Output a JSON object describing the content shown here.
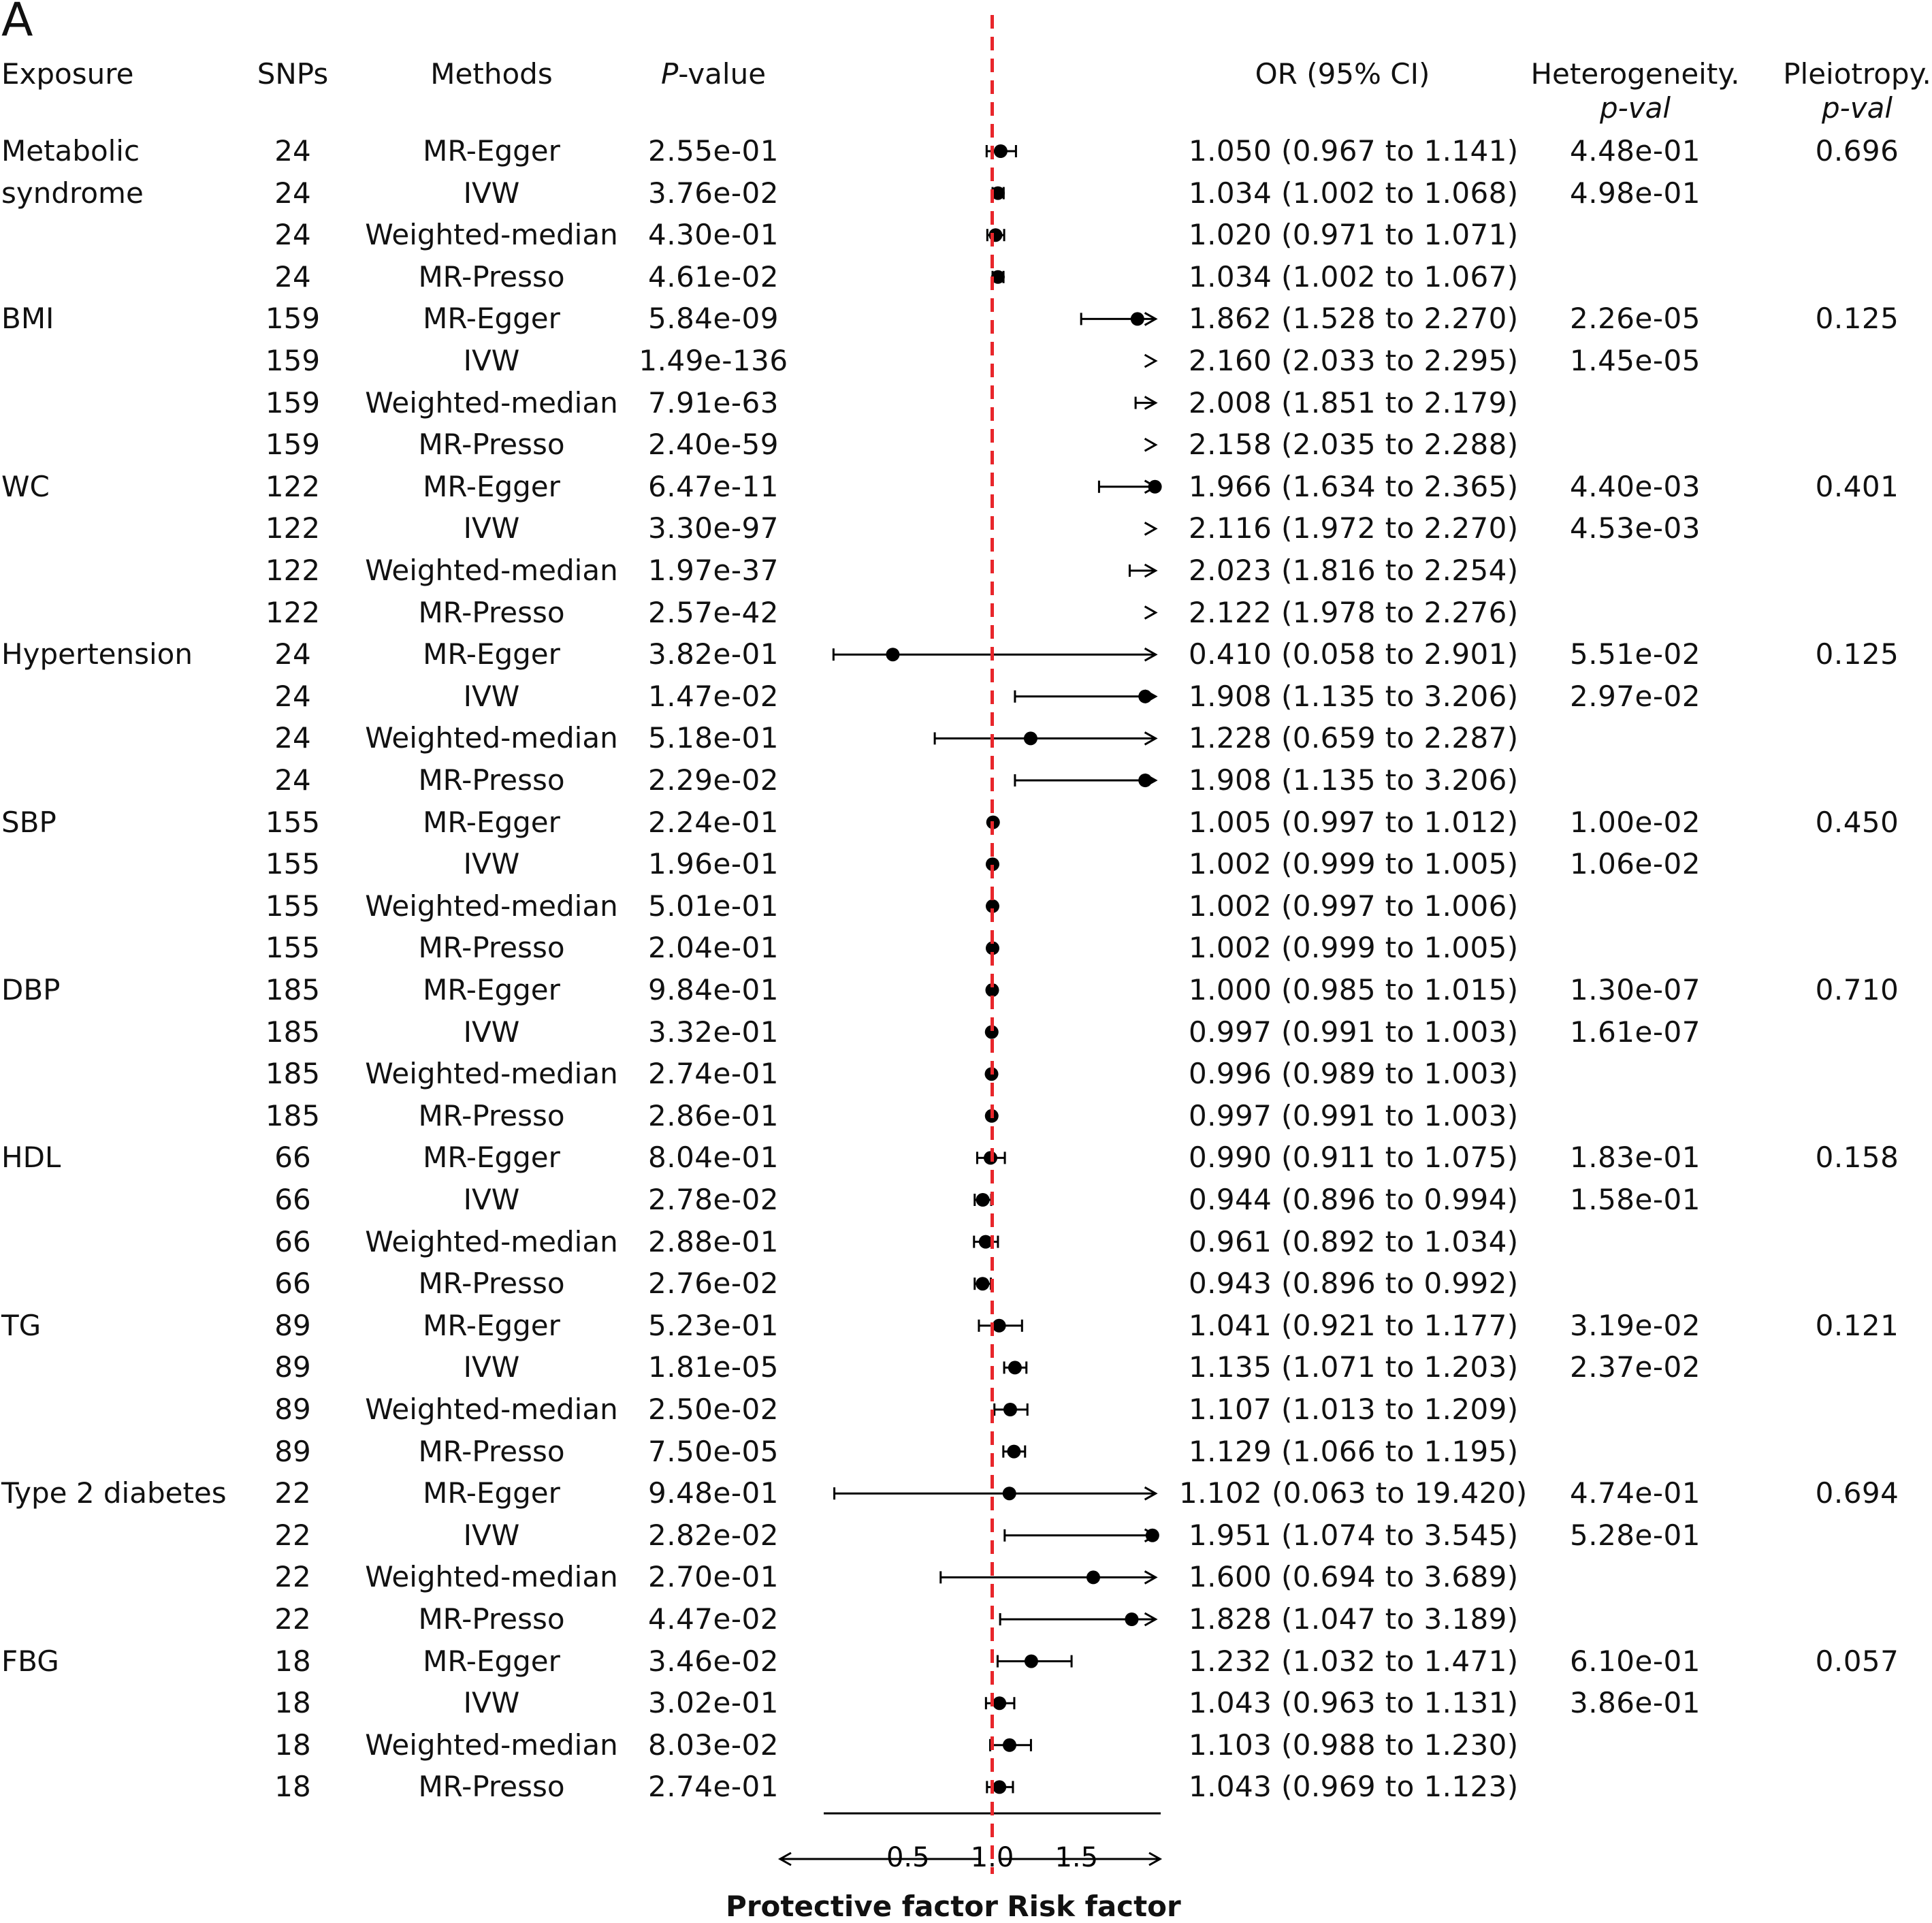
{
  "panel_label": "A",
  "headers": {
    "exposure": "Exposure",
    "snps": "SNPs",
    "methods": "Methods",
    "pvalue_italic": "P",
    "pvalue_rest": "-value",
    "or": "OR (95% CI)",
    "heterogeneity_line1": "Heterogeneity.",
    "heterogeneity_line2": "p-val",
    "pleiotropy_line1": "Pleiotropy.",
    "pleiotropy_line2": "p-val"
  },
  "bottom_labels": {
    "protective": "Protective factor",
    "risk": "Risk factor"
  },
  "colors": {
    "reference_line": "#e8262b",
    "marks": "#000000"
  },
  "chart_data": {
    "type": "forest",
    "reference_value": 1.0,
    "xlim": [
      0.0,
      2.0
    ],
    "xticks": [
      "0.5",
      "1.0",
      "1.5"
    ],
    "xtick_values": [
      0.5,
      1.0,
      1.5
    ],
    "rows": [
      {
        "exposure_lines": [
          "Metabolic",
          "syndrome"
        ],
        "snps": "24",
        "method": "MR-Egger",
        "p": "2.55e-01",
        "or": 1.05,
        "lo": 0.967,
        "hi": 1.141,
        "or_text": "1.050 (0.967 to 1.141)",
        "het": "4.48e-01",
        "pleio": "0.696"
      },
      {
        "exposure_lines": [],
        "snps": "24",
        "method": "IVW",
        "p": "3.76e-02",
        "or": 1.034,
        "lo": 1.002,
        "hi": 1.068,
        "or_text": "1.034 (1.002 to 1.068)",
        "het": "4.98e-01",
        "pleio": ""
      },
      {
        "exposure_lines": [],
        "snps": "24",
        "method": "Weighted-median",
        "p": "4.30e-01",
        "or": 1.02,
        "lo": 0.971,
        "hi": 1.071,
        "or_text": "1.020 (0.971 to 1.071)",
        "het": "",
        "pleio": ""
      },
      {
        "exposure_lines": [],
        "snps": "24",
        "method": "MR-Presso",
        "p": "4.61e-02",
        "or": 1.034,
        "lo": 1.002,
        "hi": 1.067,
        "or_text": "1.034 (1.002 to 1.067)",
        "het": "",
        "pleio": ""
      },
      {
        "exposure_lines": [
          "BMI"
        ],
        "snps": "159",
        "method": "MR-Egger",
        "p": "5.84e-09",
        "or": 1.862,
        "lo": 1.528,
        "hi": 2.27,
        "or_text": "1.862 (1.528 to 2.270)",
        "het": "2.26e-05",
        "pleio": "0.125"
      },
      {
        "exposure_lines": [],
        "snps": "159",
        "method": "IVW",
        "p": "1.49e-136",
        "or": 2.16,
        "lo": 2.033,
        "hi": 2.295,
        "or_text": "2.160 (2.033 to 2.295)",
        "het": "1.45e-05",
        "pleio": ""
      },
      {
        "exposure_lines": [],
        "snps": "159",
        "method": "Weighted-median",
        "p": "7.91e-63",
        "or": 2.008,
        "lo": 1.851,
        "hi": 2.179,
        "or_text": "2.008 (1.851 to 2.179)",
        "het": "",
        "pleio": ""
      },
      {
        "exposure_lines": [],
        "snps": "159",
        "method": "MR-Presso",
        "p": "2.40e-59",
        "or": 2.158,
        "lo": 2.035,
        "hi": 2.288,
        "or_text": "2.158 (2.035 to 2.288)",
        "het": "",
        "pleio": ""
      },
      {
        "exposure_lines": [
          "WC"
        ],
        "snps": "122",
        "method": "MR-Egger",
        "p": "6.47e-11",
        "or": 1.966,
        "lo": 1.634,
        "hi": 2.365,
        "or_text": "1.966 (1.634 to 2.365)",
        "het": "4.40e-03",
        "pleio": "0.401"
      },
      {
        "exposure_lines": [],
        "snps": "122",
        "method": "IVW",
        "p": "3.30e-97",
        "or": 2.116,
        "lo": 1.972,
        "hi": 2.27,
        "or_text": "2.116 (1.972 to 2.270)",
        "het": "4.53e-03",
        "pleio": ""
      },
      {
        "exposure_lines": [],
        "snps": "122",
        "method": "Weighted-median",
        "p": "1.97e-37",
        "or": 2.023,
        "lo": 1.816,
        "hi": 2.254,
        "or_text": "2.023 (1.816 to 2.254)",
        "het": "",
        "pleio": ""
      },
      {
        "exposure_lines": [],
        "snps": "122",
        "method": "MR-Presso",
        "p": "2.57e-42",
        "or": 2.122,
        "lo": 1.978,
        "hi": 2.276,
        "or_text": "2.122 (1.978 to 2.276)",
        "het": "",
        "pleio": ""
      },
      {
        "exposure_lines": [
          "Hypertension"
        ],
        "snps": "24",
        "method": "MR-Egger",
        "p": "3.82e-01",
        "or": 0.41,
        "lo": 0.058,
        "hi": 2.901,
        "or_text": "0.410 (0.058 to 2.901)",
        "het": "5.51e-02",
        "pleio": "0.125"
      },
      {
        "exposure_lines": [],
        "snps": "24",
        "method": "IVW",
        "p": "1.47e-02",
        "or": 1.908,
        "lo": 1.135,
        "hi": 3.206,
        "or_text": "1.908 (1.135 to 3.206)",
        "het": "2.97e-02",
        "pleio": ""
      },
      {
        "exposure_lines": [],
        "snps": "24",
        "method": "Weighted-median",
        "p": "5.18e-01",
        "or": 1.228,
        "lo": 0.659,
        "hi": 2.287,
        "or_text": "1.228 (0.659 to 2.287)",
        "het": "",
        "pleio": ""
      },
      {
        "exposure_lines": [],
        "snps": "24",
        "method": "MR-Presso",
        "p": "2.29e-02",
        "or": 1.908,
        "lo": 1.135,
        "hi": 3.206,
        "or_text": "1.908 (1.135 to 3.206)",
        "het": "",
        "pleio": ""
      },
      {
        "exposure_lines": [
          "SBP"
        ],
        "snps": "155",
        "method": "MR-Egger",
        "p": "2.24e-01",
        "or": 1.005,
        "lo": 0.997,
        "hi": 1.012,
        "or_text": "1.005 (0.997 to 1.012)",
        "het": "1.00e-02",
        "pleio": "0.450"
      },
      {
        "exposure_lines": [],
        "snps": "155",
        "method": "IVW",
        "p": "1.96e-01",
        "or": 1.002,
        "lo": 0.999,
        "hi": 1.005,
        "or_text": "1.002 (0.999 to 1.005)",
        "het": "1.06e-02",
        "pleio": ""
      },
      {
        "exposure_lines": [],
        "snps": "155",
        "method": "Weighted-median",
        "p": "5.01e-01",
        "or": 1.002,
        "lo": 0.997,
        "hi": 1.006,
        "or_text": "1.002 (0.997 to 1.006)",
        "het": "",
        "pleio": ""
      },
      {
        "exposure_lines": [],
        "snps": "155",
        "method": "MR-Presso",
        "p": "2.04e-01",
        "or": 1.002,
        "lo": 0.999,
        "hi": 1.005,
        "or_text": "1.002 (0.999 to 1.005)",
        "het": "",
        "pleio": ""
      },
      {
        "exposure_lines": [
          "DBP"
        ],
        "snps": "185",
        "method": "MR-Egger",
        "p": "9.84e-01",
        "or": 1.0,
        "lo": 0.985,
        "hi": 1.015,
        "or_text": "1.000 (0.985 to 1.015)",
        "het": "1.30e-07",
        "pleio": "0.710"
      },
      {
        "exposure_lines": [],
        "snps": "185",
        "method": "IVW",
        "p": "3.32e-01",
        "or": 0.997,
        "lo": 0.991,
        "hi": 1.003,
        "or_text": "0.997 (0.991 to 1.003)",
        "het": "1.61e-07",
        "pleio": ""
      },
      {
        "exposure_lines": [],
        "snps": "185",
        "method": "Weighted-median",
        "p": "2.74e-01",
        "or": 0.996,
        "lo": 0.989,
        "hi": 1.003,
        "or_text": "0.996 (0.989 to 1.003)",
        "het": "",
        "pleio": ""
      },
      {
        "exposure_lines": [],
        "snps": "185",
        "method": "MR-Presso",
        "p": "2.86e-01",
        "or": 0.997,
        "lo": 0.991,
        "hi": 1.003,
        "or_text": "0.997 (0.991 to 1.003)",
        "het": "",
        "pleio": ""
      },
      {
        "exposure_lines": [
          "HDL"
        ],
        "snps": "66",
        "method": "MR-Egger",
        "p": "8.04e-01",
        "or": 0.99,
        "lo": 0.911,
        "hi": 1.075,
        "or_text": "0.990 (0.911 to 1.075)",
        "het": "1.83e-01",
        "pleio": "0.158"
      },
      {
        "exposure_lines": [],
        "snps": "66",
        "method": "IVW",
        "p": "2.78e-02",
        "or": 0.944,
        "lo": 0.896,
        "hi": 0.994,
        "or_text": "0.944 (0.896 to 0.994)",
        "het": "1.58e-01",
        "pleio": ""
      },
      {
        "exposure_lines": [],
        "snps": "66",
        "method": "Weighted-median",
        "p": "2.88e-01",
        "or": 0.961,
        "lo": 0.892,
        "hi": 1.034,
        "or_text": "0.961 (0.892 to 1.034)",
        "het": "",
        "pleio": ""
      },
      {
        "exposure_lines": [],
        "snps": "66",
        "method": "MR-Presso",
        "p": "2.76e-02",
        "or": 0.943,
        "lo": 0.896,
        "hi": 0.992,
        "or_text": "0.943 (0.896 to 0.992)",
        "het": "",
        "pleio": ""
      },
      {
        "exposure_lines": [
          "TG"
        ],
        "snps": "89",
        "method": "MR-Egger",
        "p": "5.23e-01",
        "or": 1.041,
        "lo": 0.921,
        "hi": 1.177,
        "or_text": "1.041 (0.921 to 1.177)",
        "het": "3.19e-02",
        "pleio": "0.121"
      },
      {
        "exposure_lines": [],
        "snps": "89",
        "method": "IVW",
        "p": "1.81e-05",
        "or": 1.135,
        "lo": 1.071,
        "hi": 1.203,
        "or_text": "1.135 (1.071 to 1.203)",
        "het": "2.37e-02",
        "pleio": ""
      },
      {
        "exposure_lines": [],
        "snps": "89",
        "method": "Weighted-median",
        "p": "2.50e-02",
        "or": 1.107,
        "lo": 1.013,
        "hi": 1.209,
        "or_text": "1.107 (1.013 to 1.209)",
        "het": "",
        "pleio": ""
      },
      {
        "exposure_lines": [],
        "snps": "89",
        "method": "MR-Presso",
        "p": "7.50e-05",
        "or": 1.129,
        "lo": 1.066,
        "hi": 1.195,
        "or_text": "1.129 (1.066 to 1.195)",
        "het": "",
        "pleio": ""
      },
      {
        "exposure_lines": [
          "Type 2 diabetes"
        ],
        "snps": "22",
        "method": "MR-Egger",
        "p": "9.48e-01",
        "or": 1.102,
        "lo": 0.063,
        "hi": 19.42,
        "or_text": "1.102 (0.063 to 19.420)",
        "het": "4.74e-01",
        "pleio": "0.694"
      },
      {
        "exposure_lines": [],
        "snps": "22",
        "method": "IVW",
        "p": "2.82e-02",
        "or": 1.951,
        "lo": 1.074,
        "hi": 3.545,
        "or_text": "1.951 (1.074 to 3.545)",
        "het": "5.28e-01",
        "pleio": ""
      },
      {
        "exposure_lines": [],
        "snps": "22",
        "method": "Weighted-median",
        "p": "2.70e-01",
        "or": 1.6,
        "lo": 0.694,
        "hi": 3.689,
        "or_text": "1.600 (0.694 to 3.689)",
        "het": "",
        "pleio": ""
      },
      {
        "exposure_lines": [],
        "snps": "22",
        "method": "MR-Presso",
        "p": "4.47e-02",
        "or": 1.828,
        "lo": 1.047,
        "hi": 3.189,
        "or_text": "1.828 (1.047 to 3.189)",
        "het": "",
        "pleio": ""
      },
      {
        "exposure_lines": [
          "FBG"
        ],
        "snps": "18",
        "method": "MR-Egger",
        "p": "3.46e-02",
        "or": 1.232,
        "lo": 1.032,
        "hi": 1.471,
        "or_text": "1.232 (1.032 to 1.471)",
        "het": "6.10e-01",
        "pleio": "0.057"
      },
      {
        "exposure_lines": [],
        "snps": "18",
        "method": "IVW",
        "p": "3.02e-01",
        "or": 1.043,
        "lo": 0.963,
        "hi": 1.131,
        "or_text": "1.043 (0.963 to 1.131)",
        "het": "3.86e-01",
        "pleio": ""
      },
      {
        "exposure_lines": [],
        "snps": "18",
        "method": "Weighted-median",
        "p": "8.03e-02",
        "or": 1.103,
        "lo": 0.988,
        "hi": 1.23,
        "or_text": "1.103 (0.988 to 1.230)",
        "het": "",
        "pleio": ""
      },
      {
        "exposure_lines": [],
        "snps": "18",
        "method": "MR-Presso",
        "p": "2.74e-01",
        "or": 1.043,
        "lo": 0.969,
        "hi": 1.123,
        "or_text": "1.043 (0.969 to 1.123)",
        "het": "",
        "pleio": ""
      }
    ]
  }
}
